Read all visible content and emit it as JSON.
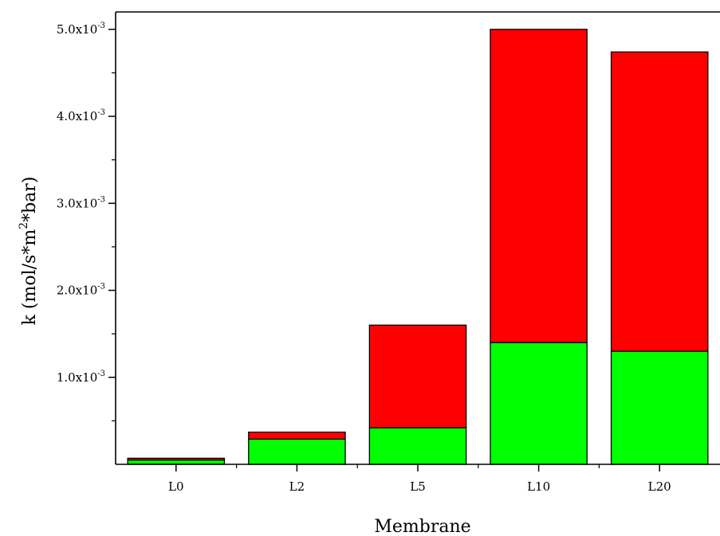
{
  "chart_data": {
    "type": "bar",
    "stacked": true,
    "categories": [
      "L0",
      "L2",
      "L5",
      "L10",
      "L20"
    ],
    "series": [
      {
        "color": "#00ff00",
        "values": [
          5e-05,
          0.00029,
          0.00042,
          0.0014,
          0.0013
        ]
      },
      {
        "color": "#ff0000",
        "values": [
          2e-05,
          8e-05,
          0.00118,
          0.0036,
          0.00344
        ]
      }
    ],
    "xlabel": "Membrane",
    "ylabel_main": "k (mol/s*m",
    "ylabel_sup": "2",
    "ylabel_tail": "*bar)",
    "ylim": [
      0,
      0.0052
    ],
    "y_ticks": [
      {
        "value": 0.001,
        "mantissa": "1.0x10",
        "exp": "-3"
      },
      {
        "value": 0.002,
        "mantissa": "2.0x10",
        "exp": "-3"
      },
      {
        "value": 0.003,
        "mantissa": "3.0x10",
        "exp": "-3"
      },
      {
        "value": 0.004,
        "mantissa": "4.0x10",
        "exp": "-3"
      },
      {
        "value": 0.005,
        "mantissa": "5.0x10",
        "exp": "-3"
      }
    ],
    "y_minor_ticks": [
      0.0005,
      0.0015,
      0.0025,
      0.0035,
      0.0045
    ],
    "grid": false,
    "legend": "none"
  }
}
